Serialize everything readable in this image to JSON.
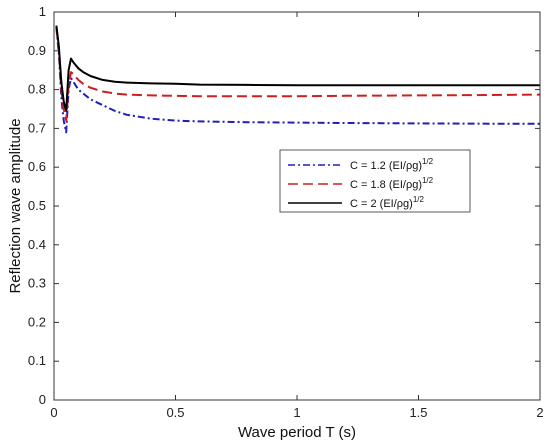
{
  "chart_data": {
    "type": "line",
    "title": "",
    "xlabel": "Wave period T (s)",
    "ylabel": "Reflection wave amplitude",
    "xlim": [
      0,
      2
    ],
    "ylim": [
      0,
      1
    ],
    "xticks": [
      0,
      0.5,
      1,
      1.5,
      2
    ],
    "xtick_labels": [
      "0",
      "0.5",
      "1",
      "1.5",
      "2"
    ],
    "yticks": [
      0,
      0.1,
      0.2,
      0.3,
      0.4,
      0.5,
      0.6,
      0.7,
      0.8,
      0.9,
      1
    ],
    "ytick_labels": [
      "0",
      "0.1",
      "0.2",
      "0.3",
      "0.4",
      "0.5",
      "0.6",
      "0.7",
      "0.8",
      "0.9",
      "1"
    ],
    "grid": false,
    "legend_position": "right-middle",
    "series": [
      {
        "name_main": "C = 1.2 (EI/ρg)",
        "name_sup": "1/2",
        "color": "#1f1fbf",
        "style": "dash-dot",
        "x": [
          0.01,
          0.02,
          0.03,
          0.04,
          0.05,
          0.06,
          0.07,
          0.08,
          0.1,
          0.12,
          0.15,
          0.2,
          0.25,
          0.3,
          0.4,
          0.5,
          0.6,
          0.8,
          1.0,
          1.2,
          1.5,
          1.8,
          2.0
        ],
        "y": [
          0.96,
          0.89,
          0.78,
          0.72,
          0.69,
          0.8,
          0.83,
          0.82,
          0.8,
          0.79,
          0.775,
          0.76,
          0.745,
          0.735,
          0.725,
          0.72,
          0.718,
          0.716,
          0.715,
          0.714,
          0.713,
          0.712,
          0.712
        ]
      },
      {
        "name_main": "C = 1.8 (EI/ρg)",
        "name_sup": "1/2",
        "color": "#cc1f1f",
        "style": "dashed",
        "x": [
          0.01,
          0.02,
          0.03,
          0.04,
          0.05,
          0.06,
          0.07,
          0.08,
          0.1,
          0.12,
          0.15,
          0.2,
          0.25,
          0.3,
          0.4,
          0.5,
          0.6,
          0.8,
          1.0,
          1.2,
          1.5,
          1.8,
          2.0
        ],
        "y": [
          0.96,
          0.9,
          0.8,
          0.75,
          0.72,
          0.81,
          0.845,
          0.84,
          0.825,
          0.815,
          0.805,
          0.795,
          0.79,
          0.787,
          0.785,
          0.784,
          0.783,
          0.783,
          0.783,
          0.784,
          0.785,
          0.786,
          0.787
        ]
      },
      {
        "name_main": "C = 2 (EI/ρg)",
        "name_sup": "1/2",
        "color": "#000000",
        "style": "solid",
        "x": [
          0.01,
          0.02,
          0.03,
          0.04,
          0.05,
          0.06,
          0.07,
          0.08,
          0.1,
          0.12,
          0.15,
          0.2,
          0.25,
          0.3,
          0.4,
          0.5,
          0.6,
          0.8,
          1.0,
          1.2,
          1.5,
          1.8,
          2.0
        ],
        "y": [
          0.965,
          0.91,
          0.82,
          0.77,
          0.745,
          0.85,
          0.88,
          0.87,
          0.855,
          0.845,
          0.835,
          0.825,
          0.82,
          0.818,
          0.816,
          0.815,
          0.813,
          0.812,
          0.811,
          0.811,
          0.811,
          0.811,
          0.811
        ]
      }
    ]
  }
}
